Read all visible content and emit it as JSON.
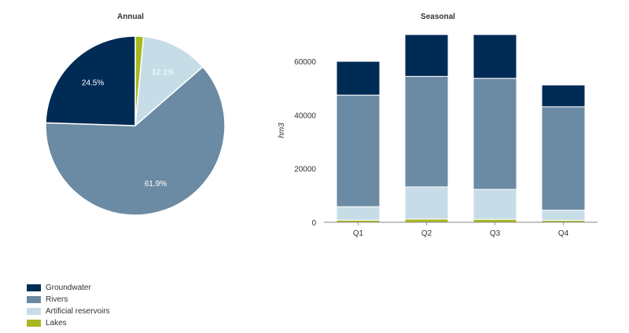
{
  "chart_data": [
    {
      "type": "pie",
      "title": "Annual",
      "slices": [
        {
          "name": "Lakes",
          "value": 1.5,
          "label": "",
          "color": "#a8b820"
        },
        {
          "name": "Artificial reservoirs",
          "value": 12.1,
          "label": "12.1%",
          "color": "#c6dde8"
        },
        {
          "name": "Rivers",
          "value": 61.9,
          "label": "61.9%",
          "color": "#6b8ba4"
        },
        {
          "name": "Groundwater",
          "value": 24.5,
          "label": "24.5%",
          "color": "#002b55"
        }
      ]
    },
    {
      "type": "bar",
      "stacked": true,
      "title": "Seasonal",
      "ylabel": "hm3",
      "ylim": [
        0,
        70000
      ],
      "yticks": [
        0,
        20000,
        40000,
        60000
      ],
      "categories": [
        "Q1",
        "Q2",
        "Q3",
        "Q4"
      ],
      "series": [
        {
          "name": "Lakes",
          "values": [
            800,
            1200,
            1100,
            700
          ],
          "color": "#a8b820"
        },
        {
          "name": "Artificial reservoirs",
          "values": [
            5000,
            12000,
            11200,
            3800
          ],
          "color": "#c6dde8"
        },
        {
          "name": "Rivers",
          "values": [
            41600,
            41200,
            41400,
            38600
          ],
          "color": "#6b8ba4"
        },
        {
          "name": "Groundwater",
          "values": [
            12600,
            15600,
            16300,
            8100
          ],
          "color": "#002b55"
        }
      ]
    }
  ],
  "legend": [
    {
      "label": "Groundwater",
      "color": "#002b55"
    },
    {
      "label": "Rivers",
      "color": "#6b8ba4"
    },
    {
      "label": "Artificial reservoirs",
      "color": "#c6dde8"
    },
    {
      "label": "Lakes",
      "color": "#a8b820"
    }
  ]
}
